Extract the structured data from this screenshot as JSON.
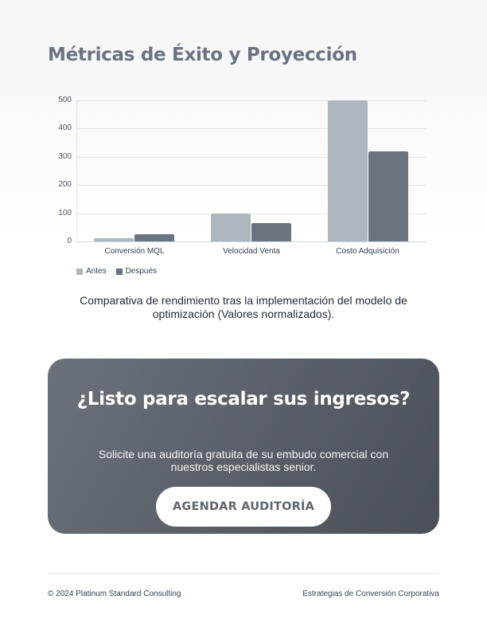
{
  "header": {
    "title": "Métricas de Éxito y Proyección"
  },
  "chart_data": {
    "type": "bar",
    "title": "",
    "categories": [
      "Conversión MQL",
      "Velocidad Venta",
      "Costo Adquisición"
    ],
    "series": [
      {
        "name": "Antes",
        "color": "#adb5bd",
        "values": [
          12,
          100,
          500
        ]
      },
      {
        "name": "Después",
        "color": "#6b7280",
        "values": [
          25,
          65,
          320
        ]
      }
    ],
    "xlabel": "",
    "ylabel": "",
    "ylim": [
      0,
      500
    ],
    "yticks": [
      "500",
      "400",
      "300",
      "200",
      "100",
      "0"
    ],
    "grid": true,
    "legend_position": "bottom-left"
  },
  "legend": {
    "items": [
      {
        "label": "Antes",
        "color": "#adb5bd"
      },
      {
        "label": "Después",
        "color": "#6b7280"
      }
    ]
  },
  "caption": "Comparativa de rendimiento tras la implementación del modelo de optimización (Valores normalizados).",
  "cta": {
    "title": "¿Listo para escalar sus ingresos?",
    "text": "Solicite una auditoría gratuita de su embudo comercial con nuestros especialistas senior.",
    "button_label": "AGENDAR AUDITORÍA"
  },
  "footer": {
    "left": "© 2024 Platinum Standard Consulting",
    "right": "Estrategias de Conversión Corporativa"
  }
}
